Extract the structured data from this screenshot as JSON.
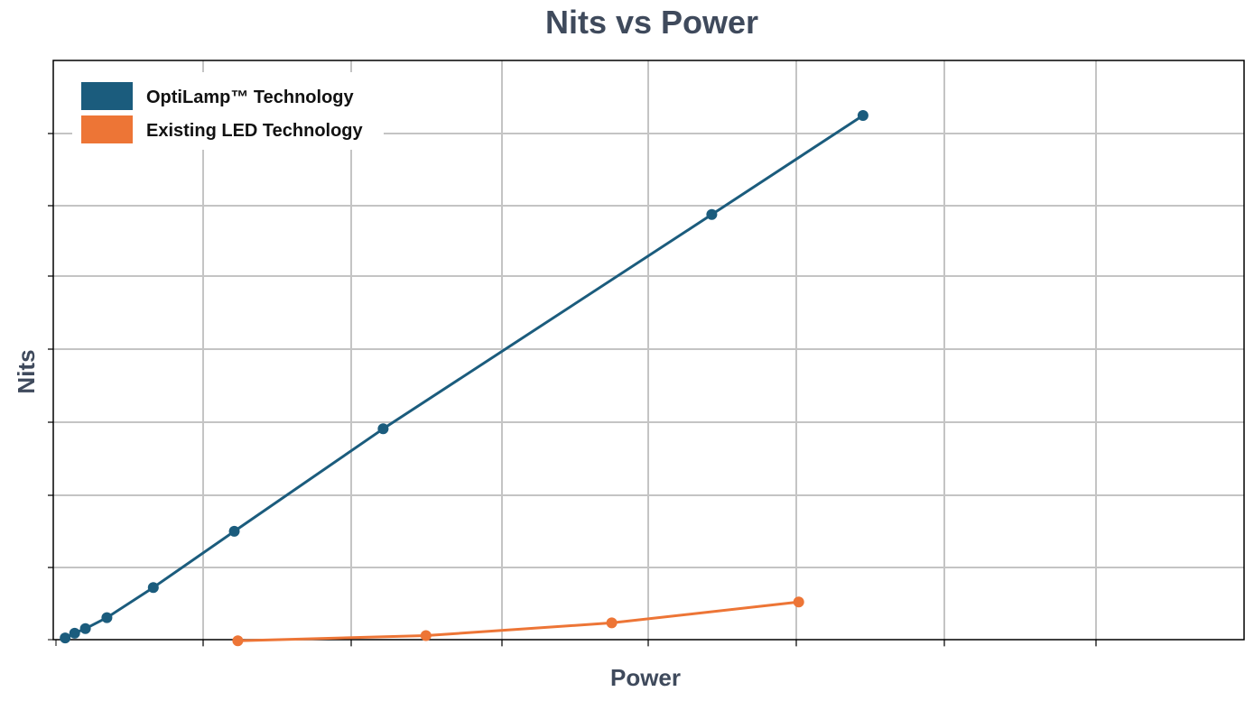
{
  "chart_data": {
    "type": "line",
    "title": "Nits vs Power",
    "xlabel": "Power",
    "ylabel": "Nits",
    "xlim": [
      0,
      100
    ],
    "ylim": [
      0,
      100
    ],
    "grid": true,
    "legend_position": "top-left",
    "series": [
      {
        "name": "OptiLamp™ Technology",
        "color": "#1b5c7d",
        "points": [
          {
            "x": 1.0,
            "y": 0.3
          },
          {
            "x": 1.8,
            "y": 1.1
          },
          {
            "x": 2.7,
            "y": 1.9
          },
          {
            "x": 4.5,
            "y": 3.8
          },
          {
            "x": 8.4,
            "y": 9.0
          },
          {
            "x": 15.2,
            "y": 18.7
          },
          {
            "x": 27.7,
            "y": 36.4
          },
          {
            "x": 55.3,
            "y": 73.4
          },
          {
            "x": 68.0,
            "y": 90.5
          }
        ]
      },
      {
        "name": "Existing LED Technology",
        "color": "#ed7536",
        "points": [
          {
            "x": 15.5,
            "y": -0.2
          },
          {
            "x": 31.3,
            "y": 0.7
          },
          {
            "x": 46.9,
            "y": 2.9
          },
          {
            "x": 62.6,
            "y": 6.5
          }
        ]
      }
    ]
  }
}
